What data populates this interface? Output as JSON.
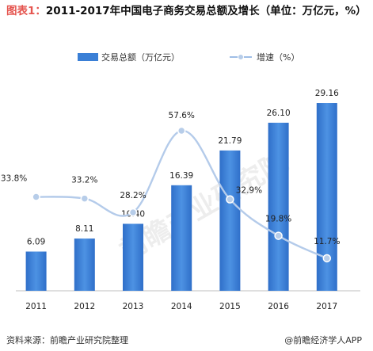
{
  "header": {
    "lead": "图表1：",
    "title": "2011-2017年中国电子商务交易总额及增长（单位：万亿元，%）"
  },
  "chart_data": {
    "type": "bar",
    "categories": [
      "2011",
      "2012",
      "2013",
      "2014",
      "2015",
      "2016",
      "2017"
    ],
    "series": [
      {
        "name": "交易总额（万亿元）",
        "kind": "bar",
        "color": "#3a7fd6",
        "values": [
          6.09,
          8.11,
          10.4,
          16.39,
          21.79,
          26.1,
          29.16
        ],
        "labels": [
          "6.09",
          "8.11",
          "10.40",
          "16.39",
          "21.79",
          "26.10",
          "29.16"
        ]
      },
      {
        "name": "增速（%）",
        "kind": "line",
        "color": "#9fbee6",
        "values": [
          33.8,
          33.2,
          28.2,
          57.6,
          32.9,
          19.8,
          11.7
        ],
        "labels": [
          "33.8%",
          "33.2%",
          "28.2%",
          "57.6%",
          "32.9%",
          "19.8%",
          "11.7%"
        ]
      }
    ],
    "ylim": [
      0,
      31.5
    ],
    "y2lim": [
      0,
      73
    ],
    "legend_position": "top-center",
    "grid": false
  },
  "watermark": {
    "text": "前瞻产业研究院"
  },
  "footer": {
    "source": "资料来源：前瞻产业研究院整理",
    "brand": "@前瞻经济学人APP"
  }
}
